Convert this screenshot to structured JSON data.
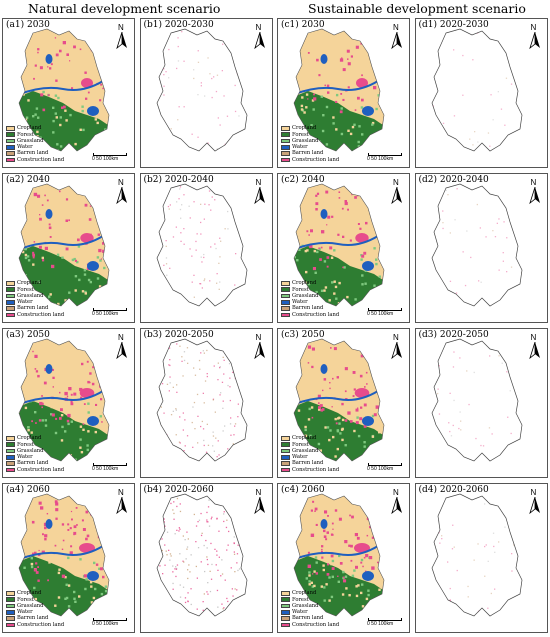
{
  "titles": {
    "natural": "Natural development scenario",
    "sustainable": "Sustainable development scenario"
  },
  "legend": [
    {
      "label": "Cropland",
      "color": "#f5d49a"
    },
    {
      "label": "Forest",
      "color": "#2e7d32"
    },
    {
      "label": "Grassland",
      "color": "#7fc97f"
    },
    {
      "label": "Water",
      "color": "#1f5fbf"
    },
    {
      "label": "Barren land",
      "color": "#c9a27a"
    },
    {
      "label": "Construction land",
      "color": "#e74c8c"
    }
  ],
  "scale": {
    "text": "0  50 100km"
  },
  "north": {
    "text": "N"
  },
  "panels": [
    {
      "label": "(a1) 2030",
      "type": "landuse",
      "year": 2030
    },
    {
      "label": "(b1) 2020-2030",
      "type": "change",
      "change_level": 0.15
    },
    {
      "label": "(c1) 2030",
      "type": "landuse",
      "year": 2030
    },
    {
      "label": "(d1) 2020-2030",
      "type": "change",
      "change_level": 0.05
    },
    {
      "label": "(a2) 2040",
      "type": "landuse",
      "year": 2040
    },
    {
      "label": "(b2) 2020-2040",
      "type": "change",
      "change_level": 0.3
    },
    {
      "label": "(c2) 2040",
      "type": "landuse",
      "year": 2040
    },
    {
      "label": "(d2) 2020-2040",
      "type": "change",
      "change_level": 0.08
    },
    {
      "label": "(a3) 2050",
      "type": "landuse",
      "year": 2050
    },
    {
      "label": "(b3) 2020-2050",
      "type": "change",
      "change_level": 0.5
    },
    {
      "label": "(c3) 2050",
      "type": "landuse",
      "year": 2050
    },
    {
      "label": "(d3) 2020-2050",
      "type": "change",
      "change_level": 0.1
    },
    {
      "label": "(a4) 2060",
      "type": "landuse",
      "year": 2060
    },
    {
      "label": "(b4) 2020-2060",
      "type": "change",
      "change_level": 0.7
    },
    {
      "label": "(c4) 2060",
      "type": "landuse",
      "year": 2060
    },
    {
      "label": "(d4) 2020-2060",
      "type": "change",
      "change_level": 0.12
    }
  ]
}
